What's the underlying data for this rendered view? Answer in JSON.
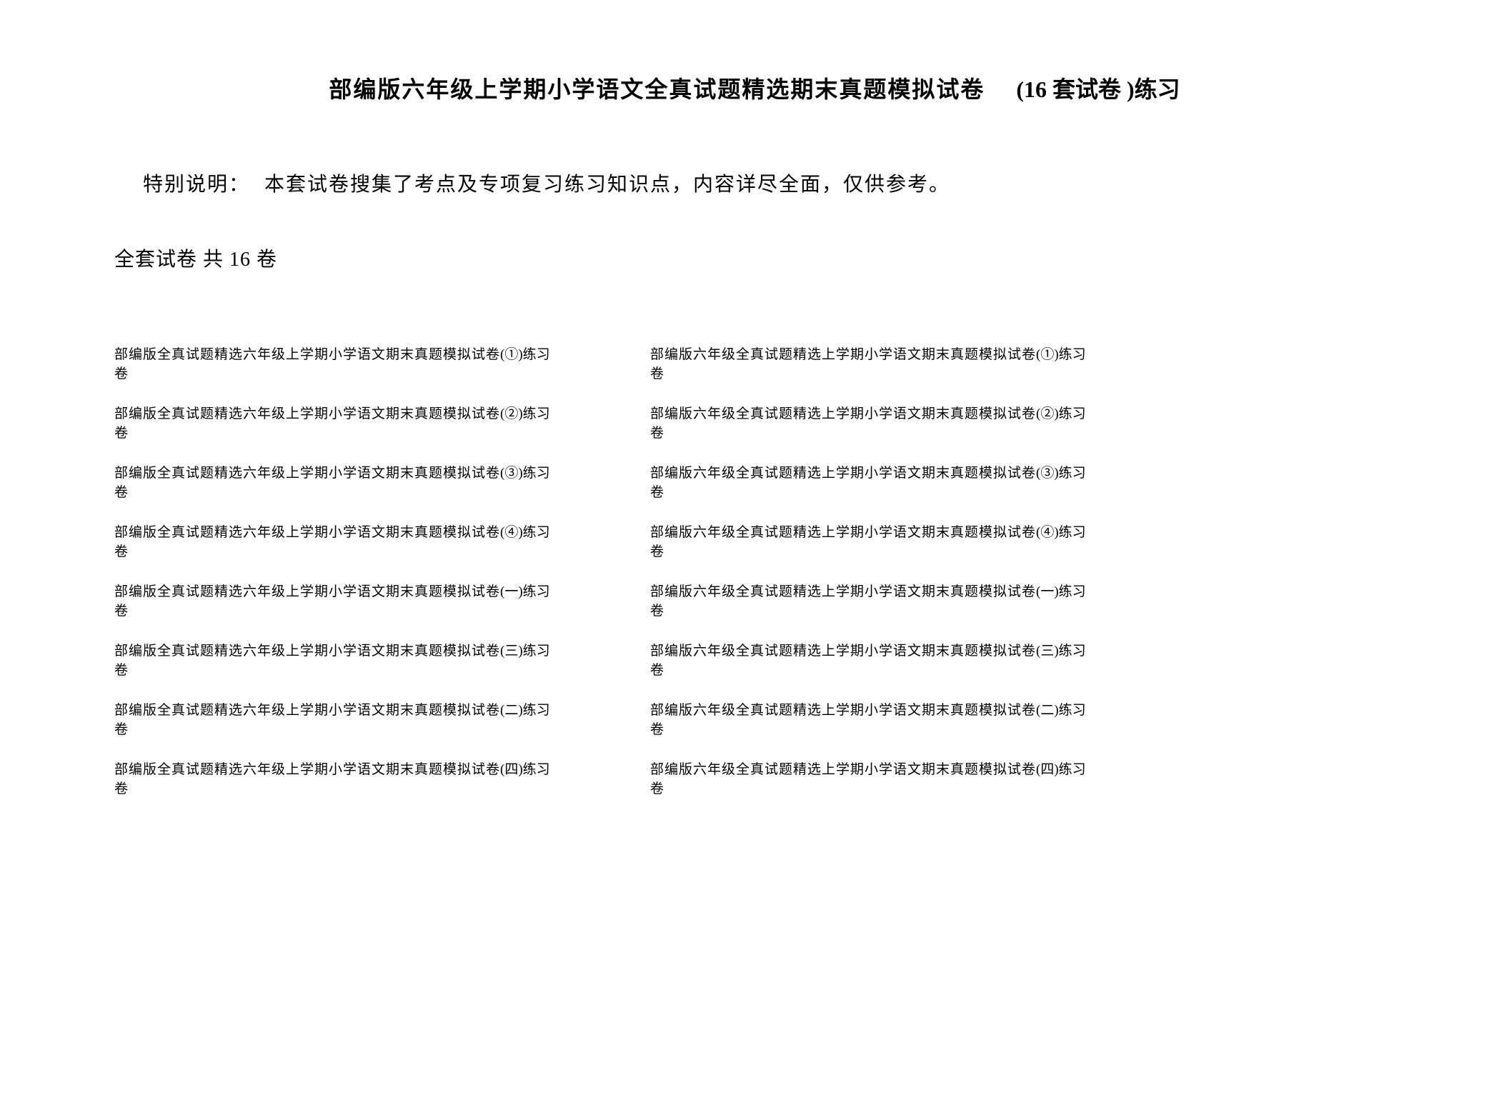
{
  "title": {
    "main": "部编版六年级上学期小学语文全真试题精选期末真题模拟试卷",
    "sub": "(16 套试卷 )练习"
  },
  "note": {
    "label": "特别说明：",
    "text": "本套试卷搜集了考点及专项复习练习知识点，内容详尽全面，仅供参考。"
  },
  "summary": "全套试卷 共 16 卷",
  "columns": {
    "left": [
      {
        "title": "部编版全真试题精选六年级上学期小学语文期末真题模拟试卷卷",
        "suffix": "(①)练习"
      },
      {
        "title": "部编版全真试题精选六年级上学期小学语文期末真题模拟试卷卷",
        "suffix": "(②)练习"
      },
      {
        "title": "部编版全真试题精选六年级上学期小学语文期末真题模拟试卷卷",
        "suffix": "(③)练习"
      },
      {
        "title": "部编版全真试题精选六年级上学期小学语文期末真题模拟试卷卷",
        "suffix": "(④)练习"
      },
      {
        "title": "部编版全真试题精选六年级上学期小学语文期末真题模拟试卷卷",
        "suffix": "(一)练习"
      },
      {
        "title": "部编版全真试题精选六年级上学期小学语文期末真题模拟试卷卷",
        "suffix": "(三)练习"
      },
      {
        "title": "部编版全真试题精选六年级上学期小学语文期末真题模拟试卷卷",
        "suffix": "(二)练习"
      },
      {
        "title": "部编版全真试题精选六年级上学期小学语文期末真题模拟试卷卷",
        "suffix": "(四)练习"
      }
    ],
    "right": [
      {
        "title": "部编版六年级全真试题精选上学期小学语文期末真题模拟试卷卷",
        "suffix": "(①)练习"
      },
      {
        "title": "部编版六年级全真试题精选上学期小学语文期末真题模拟试卷卷",
        "suffix": "(②)练习"
      },
      {
        "title": "部编版六年级全真试题精选上学期小学语文期末真题模拟试卷卷",
        "suffix": "(③)练习"
      },
      {
        "title": "部编版六年级全真试题精选上学期小学语文期末真题模拟试卷卷",
        "suffix": "(④)练习"
      },
      {
        "title": "部编版六年级全真试题精选上学期小学语文期末真题模拟试卷卷",
        "suffix": "(一)练习"
      },
      {
        "title": "部编版六年级全真试题精选上学期小学语文期末真题模拟试卷卷",
        "suffix": "(三)练习"
      },
      {
        "title": "部编版六年级全真试题精选上学期小学语文期末真题模拟试卷卷",
        "suffix": "(二)练习"
      },
      {
        "title": "部编版六年级全真试题精选上学期小学语文期末真题模拟试卷卷",
        "suffix": "(四)练习"
      }
    ]
  },
  "styling": {
    "background_color": "#ffffff",
    "text_color": "#000000",
    "title_fontsize": 32,
    "title_fontweight": "bold",
    "note_fontsize": 28,
    "summary_fontsize": 28,
    "item_fontsize": 19,
    "font_family": "SimSun"
  }
}
